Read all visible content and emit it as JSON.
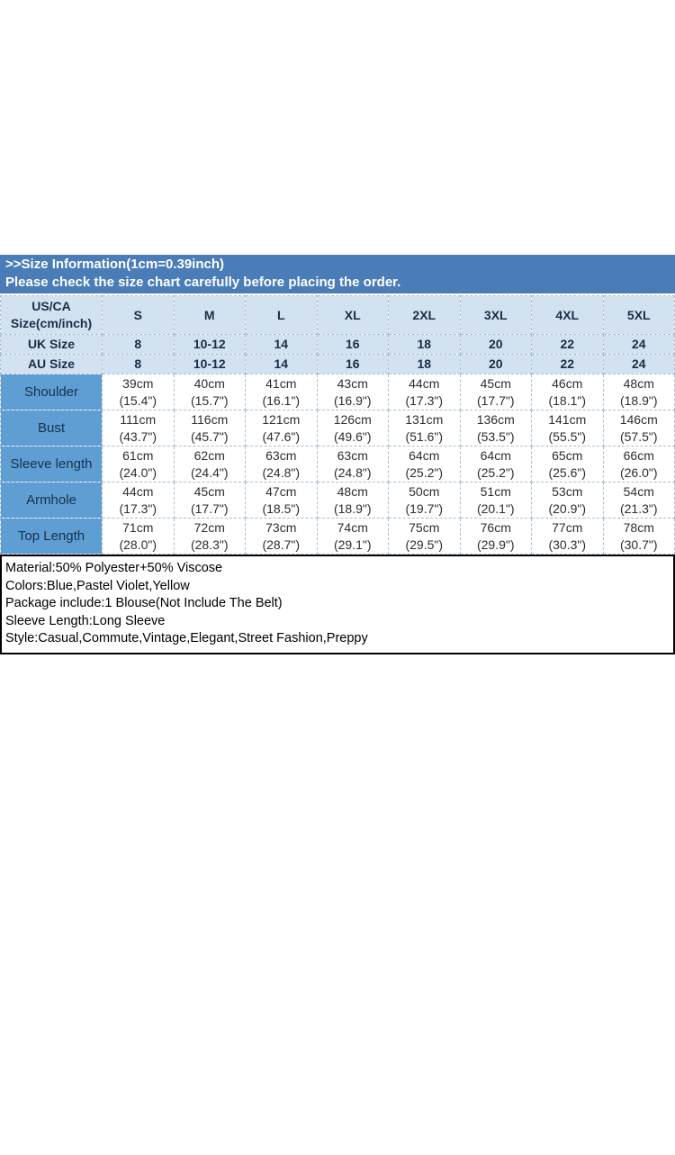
{
  "banner": {
    "title": ">>Size Information(1cm=0.39inch)",
    "subtitle": "Please check the size chart carefully before placing the order."
  },
  "size_table": {
    "corner_lines": [
      "US/CA",
      "Size(cm/inch)"
    ],
    "columns": [
      "S",
      "M",
      "L",
      "XL",
      "2XL",
      "3XL",
      "4XL",
      "5XL"
    ],
    "size_rows": [
      {
        "label": "UK Size",
        "values": [
          "8",
          "10-12",
          "14",
          "16",
          "18",
          "20",
          "22",
          "24"
        ]
      },
      {
        "label": "AU Size",
        "values": [
          "8",
          "10-12",
          "14",
          "16",
          "18",
          "20",
          "22",
          "24"
        ]
      }
    ],
    "measurement_rows": [
      {
        "label": "Shoulder",
        "cm": [
          "39cm",
          "40cm",
          "41cm",
          "43cm",
          "44cm",
          "45cm",
          "46cm",
          "48cm"
        ],
        "inch": [
          "(15.4\")",
          "(15.7\")",
          "(16.1\")",
          "(16.9\")",
          "(17.3\")",
          "(17.7\")",
          "(18.1\")",
          "(18.9\")"
        ]
      },
      {
        "label": "Bust",
        "cm": [
          "111cm",
          "116cm",
          "121cm",
          "126cm",
          "131cm",
          "136cm",
          "141cm",
          "146cm"
        ],
        "inch": [
          "(43.7\")",
          "(45.7\")",
          "(47.6\")",
          "(49.6\")",
          "(51.6\")",
          "(53.5\")",
          "(55.5\")",
          "(57.5\")"
        ]
      },
      {
        "label": "Sleeve length",
        "cm": [
          "61cm",
          "62cm",
          "63cm",
          "63cm",
          "64cm",
          "64cm",
          "65cm",
          "66cm"
        ],
        "inch": [
          "(24.0\")",
          "(24.4\")",
          "(24.8\")",
          "(24.8\")",
          "(25.2\")",
          "(25.2\")",
          "(25.6\")",
          "(26.0\")"
        ]
      },
      {
        "label": "Armhole",
        "cm": [
          "44cm",
          "45cm",
          "47cm",
          "48cm",
          "50cm",
          "51cm",
          "53cm",
          "54cm"
        ],
        "inch": [
          "(17.3\")",
          "(17.7\")",
          "(18.5\")",
          "(18.9\")",
          "(19.7\")",
          "(20.1\")",
          "(20.9\")",
          "(21.3\")"
        ]
      },
      {
        "label": "Top Length",
        "cm": [
          "71cm",
          "72cm",
          "73cm",
          "74cm",
          "75cm",
          "76cm",
          "77cm",
          "78cm"
        ],
        "inch": [
          "(28.0\")",
          "(28.3\")",
          "(28.7\")",
          "(29.1\")",
          "(29.5\")",
          "(29.9\")",
          "(30.3\")",
          "(30.7\")"
        ]
      }
    ]
  },
  "details": {
    "lines": [
      "Material:50% Polyester+50% Viscose",
      "Colors:Blue,Pastel Violet,Yellow",
      "Package include:1 Blouse(Not Include The Belt)",
      "Sleeve Length:Long Sleeve",
      "Style:Casual,Commute,Vintage,Elegant,Street Fashion,Preppy"
    ]
  },
  "colors": {
    "banner_bg": "#4a7db8",
    "banner_text": "#ffffff",
    "header_row_bg": "#d3e2f1",
    "label_column_bg": "#5f9ed2",
    "grid_line": "#a8bdd2",
    "details_border": "#000000"
  }
}
